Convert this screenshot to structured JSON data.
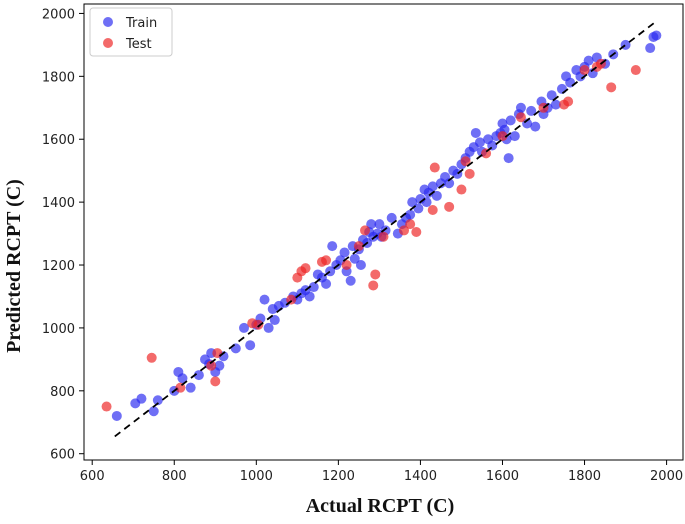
{
  "chart_data": {
    "type": "scatter",
    "xlabel": "Actual RCPT (C)",
    "ylabel": "Predicted RCPT (C)",
    "xlim": [
      580,
      2040
    ],
    "ylim": [
      580,
      2030
    ],
    "x_ticks": [
      600,
      800,
      1000,
      1200,
      1400,
      1600,
      1800,
      2000
    ],
    "y_ticks": [
      600,
      800,
      1000,
      1200,
      1400,
      1600,
      1800,
      2000
    ],
    "grid": false,
    "legend_position": "top-left",
    "reference_line": {
      "style": "dashed",
      "color": "#000000",
      "from": [
        655,
        655
      ],
      "to": [
        1975,
        1975
      ]
    },
    "series": [
      {
        "name": "Train",
        "color": "#2b2bf0",
        "points": [
          [
            660,
            720
          ],
          [
            705,
            760
          ],
          [
            720,
            775
          ],
          [
            750,
            735
          ],
          [
            760,
            770
          ],
          [
            800,
            800
          ],
          [
            810,
            860
          ],
          [
            820,
            840
          ],
          [
            840,
            810
          ],
          [
            860,
            850
          ],
          [
            875,
            900
          ],
          [
            885,
            885
          ],
          [
            890,
            920
          ],
          [
            900,
            860
          ],
          [
            910,
            880
          ],
          [
            920,
            910
          ],
          [
            950,
            935
          ],
          [
            970,
            1000
          ],
          [
            985,
            945
          ],
          [
            1000,
            1010
          ],
          [
            1010,
            1030
          ],
          [
            1020,
            1090
          ],
          [
            1030,
            1000
          ],
          [
            1040,
            1060
          ],
          [
            1045,
            1025
          ],
          [
            1055,
            1070
          ],
          [
            1070,
            1080
          ],
          [
            1090,
            1100
          ],
          [
            1100,
            1090
          ],
          [
            1110,
            1110
          ],
          [
            1120,
            1120
          ],
          [
            1130,
            1100
          ],
          [
            1140,
            1130
          ],
          [
            1150,
            1170
          ],
          [
            1160,
            1160
          ],
          [
            1170,
            1140
          ],
          [
            1180,
            1180
          ],
          [
            1185,
            1260
          ],
          [
            1195,
            1200
          ],
          [
            1205,
            1215
          ],
          [
            1215,
            1240
          ],
          [
            1220,
            1180
          ],
          [
            1230,
            1150
          ],
          [
            1235,
            1260
          ],
          [
            1240,
            1220
          ],
          [
            1250,
            1250
          ],
          [
            1255,
            1200
          ],
          [
            1260,
            1280
          ],
          [
            1270,
            1270
          ],
          [
            1275,
            1305
          ],
          [
            1280,
            1330
          ],
          [
            1285,
            1290
          ],
          [
            1295,
            1300
          ],
          [
            1300,
            1330
          ],
          [
            1305,
            1290
          ],
          [
            1315,
            1310
          ],
          [
            1330,
            1350
          ],
          [
            1345,
            1300
          ],
          [
            1355,
            1330
          ],
          [
            1365,
            1350
          ],
          [
            1375,
            1360
          ],
          [
            1380,
            1400
          ],
          [
            1395,
            1380
          ],
          [
            1400,
            1410
          ],
          [
            1410,
            1440
          ],
          [
            1415,
            1400
          ],
          [
            1420,
            1430
          ],
          [
            1430,
            1450
          ],
          [
            1440,
            1420
          ],
          [
            1450,
            1460
          ],
          [
            1460,
            1480
          ],
          [
            1470,
            1460
          ],
          [
            1480,
            1500
          ],
          [
            1490,
            1490
          ],
          [
            1500,
            1520
          ],
          [
            1510,
            1540
          ],
          [
            1520,
            1560
          ],
          [
            1530,
            1575
          ],
          [
            1535,
            1620
          ],
          [
            1545,
            1590
          ],
          [
            1550,
            1560
          ],
          [
            1565,
            1600
          ],
          [
            1575,
            1580
          ],
          [
            1585,
            1610
          ],
          [
            1595,
            1620
          ],
          [
            1600,
            1650
          ],
          [
            1605,
            1630
          ],
          [
            1610,
            1600
          ],
          [
            1615,
            1540
          ],
          [
            1620,
            1660
          ],
          [
            1630,
            1610
          ],
          [
            1640,
            1680
          ],
          [
            1645,
            1700
          ],
          [
            1660,
            1650
          ],
          [
            1670,
            1690
          ],
          [
            1680,
            1640
          ],
          [
            1695,
            1720
          ],
          [
            1700,
            1680
          ],
          [
            1710,
            1700
          ],
          [
            1720,
            1740
          ],
          [
            1730,
            1710
          ],
          [
            1745,
            1760
          ],
          [
            1755,
            1800
          ],
          [
            1765,
            1780
          ],
          [
            1780,
            1820
          ],
          [
            1790,
            1800
          ],
          [
            1800,
            1830
          ],
          [
            1810,
            1850
          ],
          [
            1820,
            1810
          ],
          [
            1830,
            1860
          ],
          [
            1850,
            1840
          ],
          [
            1870,
            1870
          ],
          [
            1900,
            1900
          ],
          [
            1960,
            1890
          ],
          [
            1975,
            1930
          ],
          [
            1968,
            1925
          ]
        ]
      },
      {
        "name": "Test",
        "color": "#ee2424",
        "points": [
          [
            635,
            750
          ],
          [
            745,
            905
          ],
          [
            815,
            810
          ],
          [
            890,
            880
          ],
          [
            900,
            830
          ],
          [
            905,
            920
          ],
          [
            990,
            1015
          ],
          [
            1005,
            1010
          ],
          [
            1085,
            1090
          ],
          [
            1100,
            1160
          ],
          [
            1110,
            1180
          ],
          [
            1120,
            1190
          ],
          [
            1160,
            1210
          ],
          [
            1170,
            1215
          ],
          [
            1220,
            1200
          ],
          [
            1250,
            1260
          ],
          [
            1265,
            1310
          ],
          [
            1285,
            1135
          ],
          [
            1290,
            1170
          ],
          [
            1310,
            1290
          ],
          [
            1360,
            1310
          ],
          [
            1375,
            1330
          ],
          [
            1390,
            1305
          ],
          [
            1430,
            1375
          ],
          [
            1435,
            1510
          ],
          [
            1470,
            1385
          ],
          [
            1500,
            1440
          ],
          [
            1510,
            1530
          ],
          [
            1520,
            1490
          ],
          [
            1560,
            1555
          ],
          [
            1600,
            1610
          ],
          [
            1645,
            1670
          ],
          [
            1700,
            1700
          ],
          [
            1750,
            1710
          ],
          [
            1760,
            1720
          ],
          [
            1800,
            1820
          ],
          [
            1830,
            1830
          ],
          [
            1840,
            1840
          ],
          [
            1865,
            1765
          ],
          [
            1925,
            1820
          ]
        ]
      }
    ]
  }
}
